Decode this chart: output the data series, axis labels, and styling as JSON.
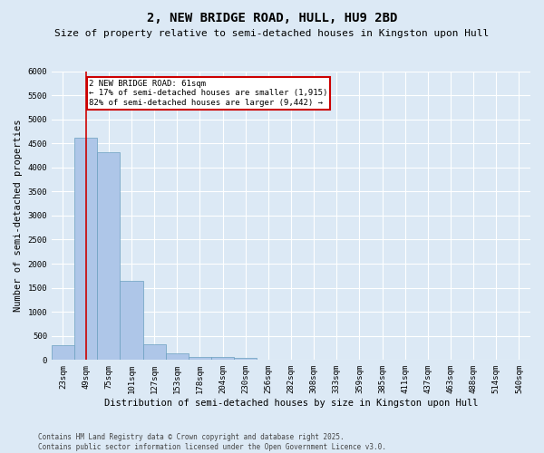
{
  "title": "2, NEW BRIDGE ROAD, HULL, HU9 2BD",
  "subtitle": "Size of property relative to semi-detached houses in Kingston upon Hull",
  "xlabel": "Distribution of semi-detached houses by size in Kingston upon Hull",
  "ylabel": "Number of semi-detached properties",
  "categories": [
    "23sqm",
    "49sqm",
    "75sqm",
    "101sqm",
    "127sqm",
    "153sqm",
    "178sqm",
    "204sqm",
    "230sqm",
    "256sqm",
    "282sqm",
    "308sqm",
    "333sqm",
    "359sqm",
    "385sqm",
    "411sqm",
    "437sqm",
    "463sqm",
    "488sqm",
    "514sqm",
    "540sqm"
  ],
  "values": [
    310,
    4620,
    4310,
    1650,
    330,
    130,
    70,
    55,
    40,
    0,
    0,
    0,
    0,
    0,
    0,
    0,
    0,
    0,
    0,
    0,
    0
  ],
  "bar_color": "#aec6e8",
  "bar_edge_color": "#6a9fc0",
  "red_line_x": 1,
  "annotation_text": "2 NEW BRIDGE ROAD: 61sqm\n← 17% of semi-detached houses are smaller (1,915)\n82% of semi-detached houses are larger (9,442) →",
  "annotation_box_color": "#ffffff",
  "annotation_box_edge_color": "#cc0000",
  "ylim": [
    0,
    6000
  ],
  "yticks": [
    0,
    500,
    1000,
    1500,
    2000,
    2500,
    3000,
    3500,
    4000,
    4500,
    5000,
    5500,
    6000
  ],
  "background_color": "#dce9f5",
  "grid_color": "#ffffff",
  "red_line_color": "#cc0000",
  "title_fontsize": 10,
  "subtitle_fontsize": 8,
  "tick_fontsize": 6.5,
  "label_fontsize": 7.5,
  "footer_fontsize": 5.5,
  "footer": "Contains HM Land Registry data © Crown copyright and database right 2025.\nContains public sector information licensed under the Open Government Licence v3.0."
}
